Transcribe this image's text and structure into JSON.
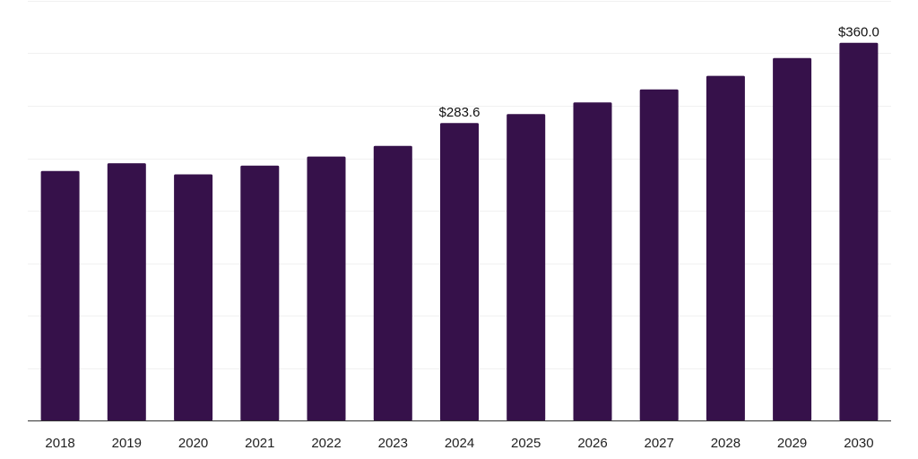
{
  "chart_data": {
    "type": "bar",
    "title": "",
    "xlabel": "",
    "ylabel": "",
    "categories": [
      "2018",
      "2019",
      "2020",
      "2021",
      "2022",
      "2023",
      "2024",
      "2025",
      "2026",
      "2027",
      "2028",
      "2029",
      "2030"
    ],
    "values": [
      238.0,
      245.3,
      234.7,
      243.1,
      251.7,
      261.9,
      283.6,
      292.1,
      303.3,
      315.6,
      328.5,
      345.4,
      360.0
    ],
    "data_labels": [
      {
        "index": 6,
        "text": "$283.6"
      },
      {
        "index": 12,
        "text": "$360.0"
      }
    ],
    "ylim": [
      0,
      400
    ],
    "y_gridlines": [
      50,
      100,
      150,
      200,
      250,
      300,
      350,
      400
    ],
    "grid": true,
    "legend": "none",
    "colors": {
      "bar": "#36114a",
      "grid": "#f1f1f1",
      "axis": "#333333",
      "text": "#222222"
    }
  }
}
